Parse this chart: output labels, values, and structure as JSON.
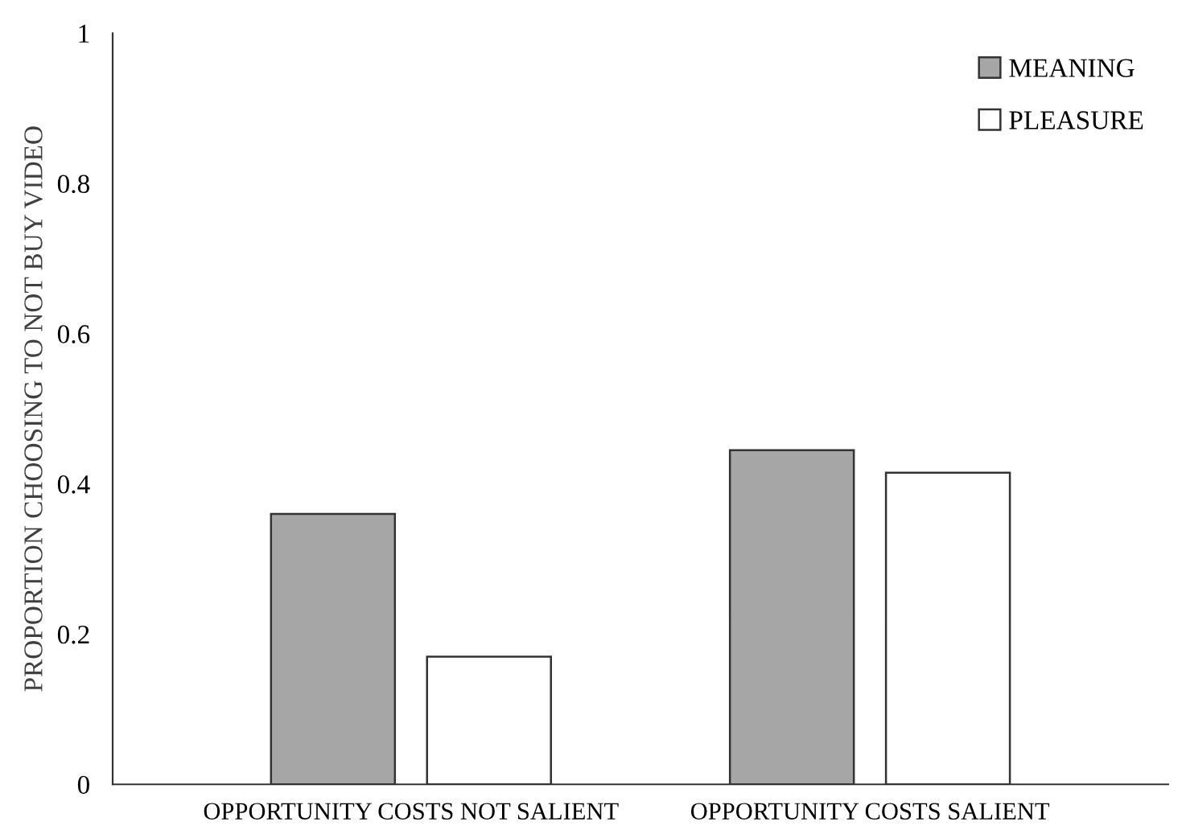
{
  "chart_data": {
    "type": "bar",
    "ylabel": "PROPORTION CHOOSING TO NOT BUY VIDEO",
    "categories": [
      "OPPORTUNITY COSTS NOT SALIENT",
      "OPPORTUNITY COSTS SALIENT"
    ],
    "series": [
      {
        "name": "MEANING",
        "color": "#a6a6a6",
        "values": [
          0.36,
          0.445
        ]
      },
      {
        "name": "PLEASURE",
        "color": "#ffffff",
        "values": [
          0.17,
          0.415
        ]
      }
    ],
    "ylim": [
      0,
      1
    ],
    "yticks": [
      0,
      0.2,
      0.4,
      0.6,
      0.8,
      1
    ],
    "grid": false,
    "legend": "top right"
  }
}
